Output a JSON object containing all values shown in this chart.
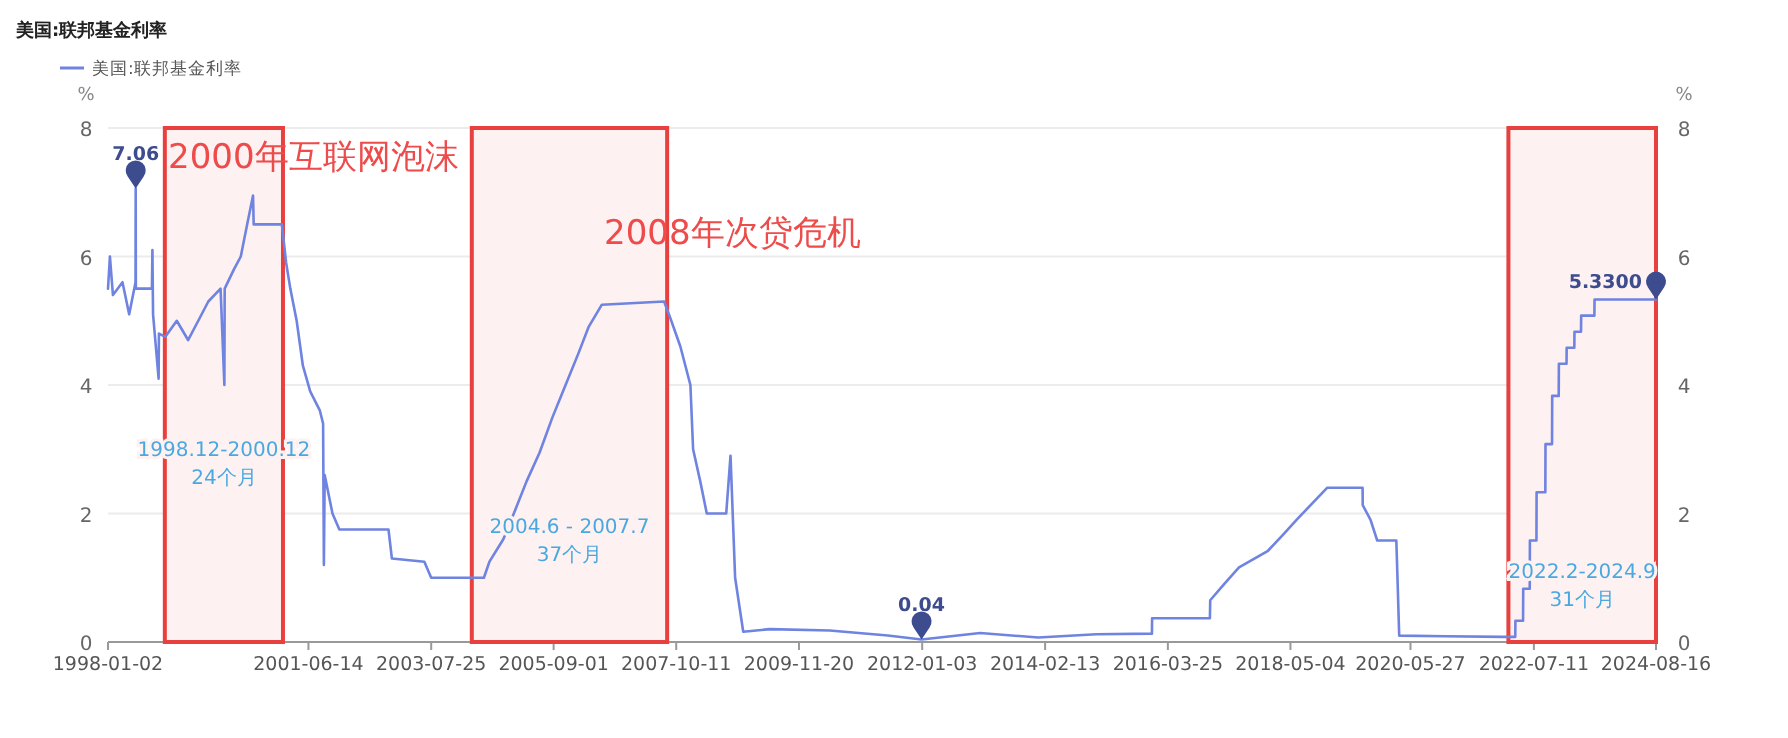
{
  "chart_data": {
    "type": "line",
    "title": "美国:联邦基金利率",
    "ylabel": "%",
    "y2label": "%",
    "xlim": [
      "1998-01-02",
      "2024-08-16"
    ],
    "xticks": [
      "1998-01-02",
      "2001-06-14",
      "2003-07-25",
      "2005-09-01",
      "2007-10-11",
      "2009-11-20",
      "2012-01-03",
      "2014-02-13",
      "2016-03-25",
      "2018-05-04",
      "2020-05-27",
      "2022-07-11",
      "2024-08-16"
    ],
    "ylim": [
      0,
      8
    ],
    "yticks": [
      0,
      2,
      4,
      6,
      8
    ],
    "y2lim": [
      0,
      8
    ],
    "y2ticks": [
      0,
      2,
      4,
      6,
      8
    ],
    "grid": "y",
    "legend": "top left",
    "series": [
      {
        "name": "美国:联邦基金利率",
        "color": "#6f83e0",
        "x": [
          "1998-01-02",
          "1998-01-14",
          "1998-02-02",
          "1998-04-03",
          "1998-05-15",
          "1998-06-24",
          "1998-06-25",
          "1998-06-26",
          "1998-10-05",
          "1998-10-08",
          "1998-10-12",
          "1998-11-16",
          "1998-11-18",
          "1998-12-28",
          "1999-03-10",
          "1999-05-20",
          "1999-07-23",
          "1999-09-24",
          "1999-12-10",
          "2000-01-03",
          "2000-01-05",
          "2000-03-03",
          "2000-04-15",
          "2000-05-25",
          "2000-07-01",
          "2000-07-05",
          "2000-12-29",
          "2001-01-25",
          "2001-02-20",
          "2001-04-01",
          "2001-05-10",
          "2001-06-25",
          "2001-08-25",
          "2001-09-14",
          "2001-09-19",
          "2001-09-24",
          "2001-11-12",
          "2001-12-25",
          "2002-10-30",
          "2002-11-20",
          "2003-06-12",
          "2003-07-25",
          "2004-06-20",
          "2004-07-25",
          "2004-10-20",
          "2004-12-25",
          "2005-03-15",
          "2005-06-05",
          "2005-08-25",
          "2005-11-15",
          "2006-02-05",
          "2006-04-08",
          "2006-07-01",
          "2007-07-27",
          "2007-09-10",
          "2007-11-06",
          "2008-01-08",
          "2008-01-25",
          "2008-03-10",
          "2008-04-20",
          "2008-08-20",
          "2008-09-16",
          "2008-10-15",
          "2008-12-05",
          "2009-05-20",
          "2010-06-01",
          "2011-06-01",
          "2011-12-30",
          "2013-01-01",
          "2014-01-01",
          "2015-01-01",
          "2015-12-16",
          "2015-12-17",
          "2016-12-14",
          "2016-12-16",
          "2017-03-16",
          "2017-06-15",
          "2017-12-14",
          "2018-03-22",
          "2018-06-14",
          "2018-09-27",
          "2018-12-20",
          "2019-07-31",
          "2019-08-01",
          "2019-09-19",
          "2019-10-31",
          "2020-02-28",
          "2020-03-05",
          "2020-03-17",
          "2021-01-01",
          "2021-12-30",
          "2022-03-16",
          "2022-03-17",
          "2022-05-04",
          "2022-05-05",
          "2022-06-15",
          "2022-06-16",
          "2022-07-27",
          "2022-07-28",
          "2022-09-21",
          "2022-09-22",
          "2022-11-02",
          "2022-11-03",
          "2022-12-14",
          "2022-12-15",
          "2023-02-01",
          "2023-02-02",
          "2023-03-22",
          "2023-03-23",
          "2023-05-03",
          "2023-05-04",
          "2023-07-26",
          "2023-07-27",
          "2024-08-16"
        ],
        "values": [
          5.5,
          6.0,
          5.4,
          5.6,
          5.1,
          5.6,
          7.06,
          5.5,
          5.5,
          6.1,
          5.1,
          4.1,
          4.8,
          4.75,
          5.0,
          4.7,
          5.0,
          5.3,
          5.5,
          4.0,
          5.5,
          5.8,
          6.0,
          6.5,
          6.95,
          6.5,
          6.5,
          5.9,
          5.5,
          5.0,
          4.3,
          3.9,
          3.6,
          3.4,
          1.2,
          2.6,
          2.0,
          1.75,
          1.75,
          1.3,
          1.25,
          1.0,
          1.0,
          1.25,
          1.6,
          2.0,
          2.5,
          2.95,
          3.5,
          4.0,
          4.5,
          4.9,
          5.25,
          5.3,
          5.0,
          4.6,
          4.0,
          3.0,
          2.5,
          2.0,
          2.0,
          2.9,
          1.0,
          0.16,
          0.2,
          0.18,
          0.1,
          0.04,
          0.14,
          0.07,
          0.12,
          0.13,
          0.37,
          0.37,
          0.65,
          0.91,
          1.16,
          1.42,
          1.68,
          1.91,
          2.18,
          2.4,
          2.4,
          2.13,
          1.9,
          1.58,
          1.58,
          1.1,
          0.1,
          0.09,
          0.08,
          0.08,
          0.33,
          0.33,
          0.83,
          0.83,
          1.58,
          1.58,
          2.33,
          2.33,
          3.08,
          3.08,
          3.83,
          3.83,
          4.33,
          4.33,
          4.58,
          4.58,
          4.83,
          4.83,
          5.08,
          5.08,
          5.33,
          5.33
        ]
      }
    ],
    "bands": [
      {
        "axis": "x",
        "from": "1998-12-25",
        "to": "2001-01-05",
        "label": "1998.12-2000.12 24个月",
        "color": "#e8403f"
      },
      {
        "axis": "x",
        "from": "2004-04-05",
        "to": "2007-08-15",
        "label": "2004.6 - 2007.7 37个月",
        "color": "#e8403f"
      },
      {
        "axis": "x",
        "from": "2022-02-01",
        "to": "2024-08-16",
        "label": "2022.2-2024.9 31个月",
        "color": "#e8403f"
      }
    ],
    "annotations": [
      "2000年互联网泡沫",
      "2008年次贷危机",
      {
        "text": "7.06",
        "x": "1998-06-25",
        "y": 7.06
      },
      {
        "text": "0.04",
        "x": "2011-12-30",
        "y": 0.04
      },
      {
        "text": "5.3300",
        "x": "2024-08-16",
        "y": 5.33
      }
    ]
  }
}
